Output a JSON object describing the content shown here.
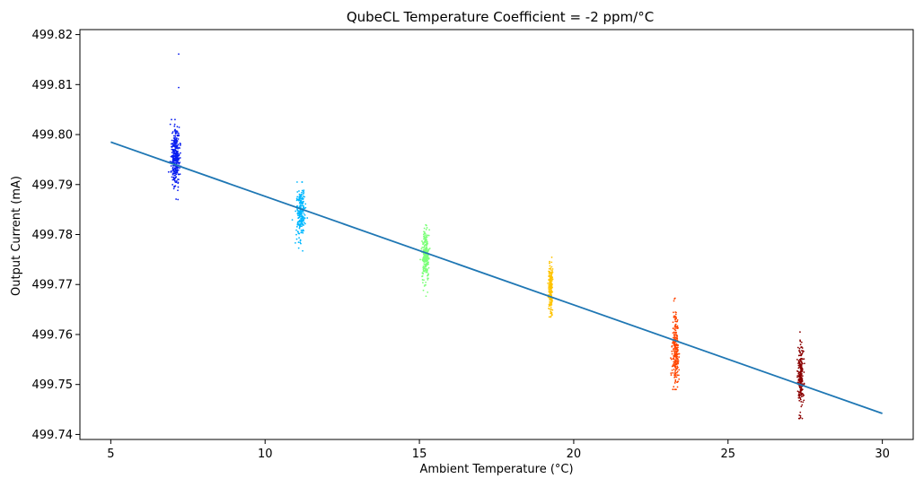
{
  "chart_data": {
    "type": "scatter",
    "title": "QubeCL Temperature Coefficient = -2 ppm/°C",
    "xlabel": "Ambient Temperature (°C)",
    "ylabel": "Output Current (mA)",
    "xlim": [
      4,
      31
    ],
    "ylim": [
      499.739,
      499.821
    ],
    "x_ticks": [
      "5",
      "10",
      "15",
      "20",
      "25",
      "30"
    ],
    "y_ticks": [
      "499.74",
      "499.75",
      "499.76",
      "499.77",
      "499.78",
      "499.79",
      "499.80",
      "499.81",
      "499.82"
    ],
    "grid": false,
    "clusters": [
      {
        "x_center": 7.1,
        "x_spread": 0.2,
        "y_center": 499.7955,
        "y_min": 499.787,
        "y_max": 499.803,
        "count": 320,
        "color": "#0a1ef0",
        "outliers": [
          {
            "x": 7.2,
            "y": 499.8161
          },
          {
            "x": 7.2,
            "y": 499.8094
          }
        ]
      },
      {
        "x_center": 11.15,
        "x_spread": 0.2,
        "y_center": 499.7845,
        "y_min": 499.7755,
        "y_max": 499.7905,
        "count": 220,
        "color": "#00b8ff",
        "outliers": []
      },
      {
        "x_center": 15.2,
        "x_spread": 0.18,
        "y_center": 499.7755,
        "y_min": 499.7672,
        "y_max": 499.782,
        "count": 240,
        "color": "#7dff7a",
        "outliers": []
      },
      {
        "x_center": 19.25,
        "x_spread": 0.1,
        "y_center": 499.769,
        "y_min": 499.763,
        "y_max": 499.7765,
        "count": 200,
        "color": "#ffc400",
        "outliers": []
      },
      {
        "x_center": 23.3,
        "x_spread": 0.15,
        "y_center": 499.757,
        "y_min": 499.749,
        "y_max": 499.7695,
        "count": 240,
        "color": "#ff4500",
        "outliers": []
      },
      {
        "x_center": 27.35,
        "x_spread": 0.13,
        "y_center": 499.7515,
        "y_min": 499.7432,
        "y_max": 499.7605,
        "count": 220,
        "color": "#8b0000",
        "outliers": []
      }
    ],
    "fit_line": {
      "x": [
        5,
        30
      ],
      "y": [
        499.7985,
        499.7442
      ],
      "color": "#1f77b4"
    }
  }
}
